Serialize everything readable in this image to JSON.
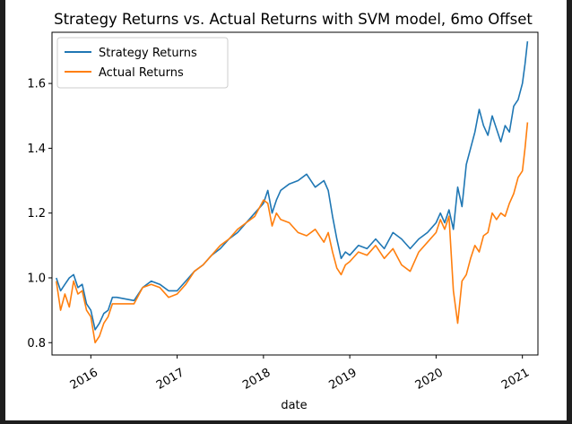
{
  "chart_data": {
    "type": "line",
    "title": "Strategy Returns vs. Actual Returns with SVM model, 6mo Offset",
    "xlabel": "date",
    "ylabel": "",
    "x_range": [
      2015.55,
      2021.18
    ],
    "ylim": [
      0.762,
      1.758
    ],
    "y_ticks": [
      0.8,
      1.0,
      1.2,
      1.4,
      1.6
    ],
    "y_tick_labels": [
      "0.8",
      "1.0",
      "1.2",
      "1.4",
      "1.6"
    ],
    "x_ticks": [
      2016,
      2017,
      2018,
      2019,
      2020,
      2021
    ],
    "x_tick_labels": [
      "2016",
      "2017",
      "2018",
      "2019",
      "2020",
      "2021"
    ],
    "grid": false,
    "legend_position": "top-left",
    "colors": {
      "strategy": "#1f77b4",
      "actual": "#ff7f0e"
    },
    "series": [
      {
        "name": "Strategy Returns",
        "x": [
          2015.6,
          2015.65,
          2015.7,
          2015.75,
          2015.8,
          2015.85,
          2015.9,
          2015.95,
          2016.0,
          2016.05,
          2016.1,
          2016.15,
          2016.2,
          2016.25,
          2016.3,
          2016.5,
          2016.6,
          2016.7,
          2016.8,
          2016.9,
          2017.0,
          2017.1,
          2017.2,
          2017.3,
          2017.4,
          2017.5,
          2017.6,
          2017.7,
          2017.8,
          2017.9,
          2018.0,
          2018.05,
          2018.1,
          2018.15,
          2018.2,
          2018.3,
          2018.4,
          2018.5,
          2018.6,
          2018.7,
          2018.75,
          2018.8,
          2018.85,
          2018.9,
          2018.95,
          2019.0,
          2019.1,
          2019.2,
          2019.3,
          2019.4,
          2019.5,
          2019.6,
          2019.7,
          2019.8,
          2019.9,
          2020.0,
          2020.05,
          2020.1,
          2020.15,
          2020.2,
          2020.25,
          2020.3,
          2020.35,
          2020.4,
          2020.45,
          2020.5,
          2020.55,
          2020.6,
          2020.65,
          2020.7,
          2020.75,
          2020.8,
          2020.85,
          2020.9,
          2020.95,
          2021.0,
          2021.03,
          2021.06
        ],
        "y": [
          1.0,
          0.96,
          0.98,
          1.0,
          1.01,
          0.97,
          0.98,
          0.92,
          0.9,
          0.84,
          0.86,
          0.89,
          0.9,
          0.94,
          0.94,
          0.93,
          0.97,
          0.99,
          0.98,
          0.96,
          0.96,
          0.99,
          1.02,
          1.04,
          1.07,
          1.09,
          1.12,
          1.14,
          1.17,
          1.2,
          1.23,
          1.27,
          1.2,
          1.24,
          1.27,
          1.29,
          1.3,
          1.32,
          1.28,
          1.3,
          1.27,
          1.19,
          1.12,
          1.06,
          1.08,
          1.07,
          1.1,
          1.09,
          1.12,
          1.09,
          1.14,
          1.12,
          1.09,
          1.12,
          1.14,
          1.17,
          1.2,
          1.17,
          1.21,
          1.15,
          1.28,
          1.22,
          1.35,
          1.4,
          1.45,
          1.52,
          1.47,
          1.44,
          1.5,
          1.46,
          1.42,
          1.47,
          1.45,
          1.53,
          1.55,
          1.6,
          1.66,
          1.73
        ]
      },
      {
        "name": "Actual Returns",
        "x": [
          2015.6,
          2015.65,
          2015.7,
          2015.75,
          2015.8,
          2015.85,
          2015.9,
          2015.95,
          2016.0,
          2016.05,
          2016.1,
          2016.15,
          2016.2,
          2016.25,
          2016.3,
          2016.5,
          2016.6,
          2016.7,
          2016.8,
          2016.9,
          2017.0,
          2017.1,
          2017.2,
          2017.3,
          2017.4,
          2017.5,
          2017.6,
          2017.7,
          2017.8,
          2017.9,
          2018.0,
          2018.05,
          2018.1,
          2018.15,
          2018.2,
          2018.3,
          2018.4,
          2018.5,
          2018.6,
          2018.7,
          2018.75,
          2018.8,
          2018.85,
          2018.9,
          2018.95,
          2019.0,
          2019.1,
          2019.2,
          2019.3,
          2019.4,
          2019.5,
          2019.6,
          2019.7,
          2019.8,
          2019.9,
          2020.0,
          2020.05,
          2020.1,
          2020.15,
          2020.2,
          2020.25,
          2020.3,
          2020.35,
          2020.4,
          2020.45,
          2020.5,
          2020.55,
          2020.6,
          2020.65,
          2020.7,
          2020.75,
          2020.8,
          2020.85,
          2020.9,
          2020.95,
          2021.0,
          2021.03,
          2021.06
        ],
        "y": [
          0.99,
          0.9,
          0.95,
          0.91,
          0.99,
          0.95,
          0.96,
          0.9,
          0.88,
          0.8,
          0.82,
          0.86,
          0.88,
          0.92,
          0.92,
          0.92,
          0.97,
          0.98,
          0.97,
          0.94,
          0.95,
          0.98,
          1.02,
          1.04,
          1.07,
          1.1,
          1.12,
          1.15,
          1.17,
          1.19,
          1.24,
          1.23,
          1.16,
          1.2,
          1.18,
          1.17,
          1.14,
          1.13,
          1.15,
          1.11,
          1.14,
          1.08,
          1.03,
          1.01,
          1.04,
          1.05,
          1.08,
          1.07,
          1.1,
          1.06,
          1.09,
          1.04,
          1.02,
          1.08,
          1.11,
          1.14,
          1.18,
          1.15,
          1.19,
          0.96,
          0.86,
          0.99,
          1.01,
          1.06,
          1.1,
          1.08,
          1.13,
          1.14,
          1.2,
          1.18,
          1.2,
          1.19,
          1.23,
          1.26,
          1.31,
          1.33,
          1.4,
          1.48
        ]
      }
    ]
  }
}
